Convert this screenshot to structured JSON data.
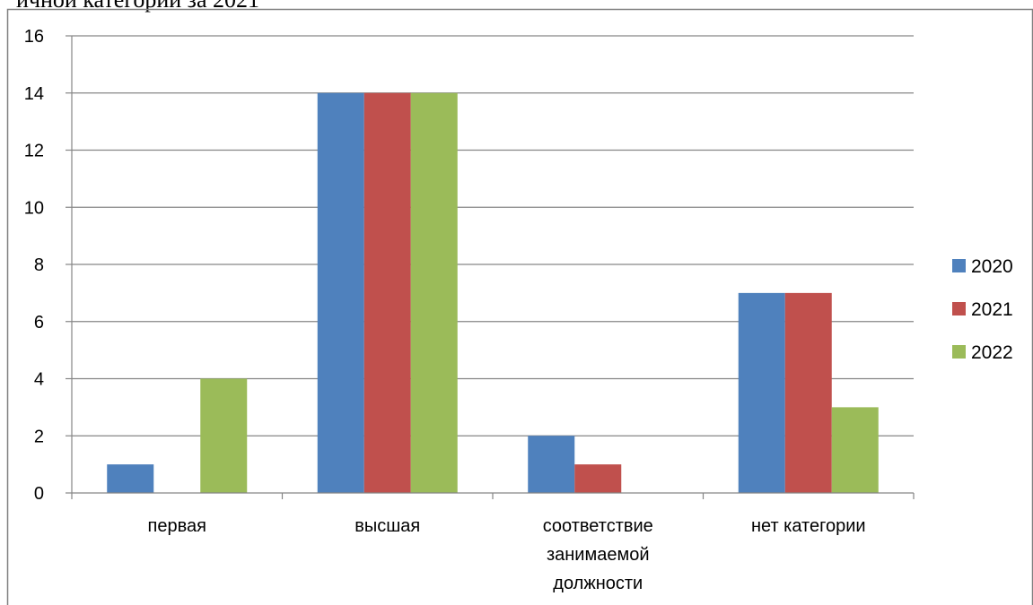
{
  "header": {
    "clipped_text": "ичной категории за 2021"
  },
  "chart_data": {
    "type": "bar",
    "categories": [
      "первая",
      "высшая",
      "соответствие занимаемой должности",
      "нет категории"
    ],
    "category_lines": [
      [
        "первая"
      ],
      [
        "высшая"
      ],
      [
        "соответствие",
        "занимаемой",
        "должности"
      ],
      [
        "нет категории"
      ]
    ],
    "series": [
      {
        "name": "2020",
        "values": [
          1,
          14,
          2,
          7
        ],
        "color": "#4F81BD"
      },
      {
        "name": "2021",
        "values": [
          0,
          14,
          1,
          7
        ],
        "color": "#C0504D"
      },
      {
        "name": "2022",
        "values": [
          4,
          14,
          0,
          3
        ],
        "color": "#9BBB59"
      }
    ],
    "ylim": [
      0,
      16
    ],
    "yticks": [
      0,
      2,
      4,
      6,
      8,
      10,
      12,
      14,
      16
    ],
    "grid": true,
    "legend_position": "right",
    "title": "",
    "xlabel": "",
    "ylabel": ""
  }
}
